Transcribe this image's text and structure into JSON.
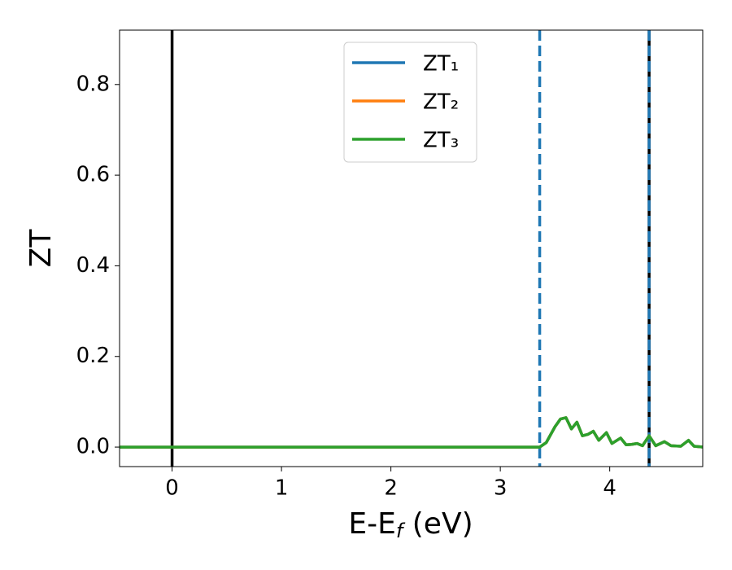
{
  "chart_data": {
    "type": "line",
    "xlabel": [
      "E-E",
      "f",
      " (eV)"
    ],
    "ylabel": "ZT",
    "x": [
      -0.48,
      3.36,
      3.42,
      3.5,
      3.55,
      3.6,
      3.65,
      3.7,
      3.75,
      3.8,
      3.85,
      3.9,
      3.97,
      4.02,
      4.1,
      4.15,
      4.2,
      4.25,
      4.3,
      4.36,
      4.42,
      4.5,
      4.56,
      4.65,
      4.72,
      4.77,
      4.85
    ],
    "series": [
      {
        "name": "ZT₁",
        "color": "#1f77b4",
        "values": [
          0,
          0,
          0.01,
          0.045,
          0.062,
          0.065,
          0.04,
          0.055,
          0.025,
          0.028,
          0.035,
          0.015,
          0.032,
          0.008,
          0.02,
          0.005,
          0.006,
          0.008,
          0.003,
          0.025,
          0.003,
          0.012,
          0.003,
          0.002,
          0.015,
          0.002,
          0
        ]
      },
      {
        "name": "ZT₂",
        "color": "#ff7f0e",
        "values": [
          0,
          0,
          0.01,
          0.045,
          0.062,
          0.065,
          0.04,
          0.055,
          0.025,
          0.028,
          0.035,
          0.015,
          0.032,
          0.008,
          0.02,
          0.005,
          0.006,
          0.008,
          0.003,
          0.025,
          0.003,
          0.012,
          0.003,
          0.002,
          0.015,
          0.002,
          0
        ]
      },
      {
        "name": "ZT₃",
        "color": "#2ca02c",
        "values": [
          0,
          0,
          0.01,
          0.045,
          0.062,
          0.065,
          0.04,
          0.055,
          0.025,
          0.028,
          0.035,
          0.015,
          0.032,
          0.008,
          0.02,
          0.005,
          0.006,
          0.008,
          0.003,
          0.025,
          0.003,
          0.012,
          0.003,
          0.002,
          0.015,
          0.002,
          0
        ]
      }
    ],
    "vlines": [
      {
        "x": 0,
        "color": "#000000",
        "style": "solid"
      },
      {
        "x": 3.36,
        "color": "#1f77b4",
        "style": "dashed"
      },
      {
        "x": 4.36,
        "color": "#000000",
        "style": "solid"
      },
      {
        "x": 4.36,
        "color": "#1f77b4",
        "style": "dashed"
      }
    ],
    "xlim": [
      -0.48,
      4.85
    ],
    "ylim": [
      -0.043,
      0.92
    ],
    "xticks": [
      0,
      1,
      2,
      3,
      4
    ],
    "yticks": [
      {
        "value": 0,
        "label": "0.0"
      },
      0.2,
      0.4,
      0.6,
      0.8
    ],
    "legend": "upper center"
  }
}
